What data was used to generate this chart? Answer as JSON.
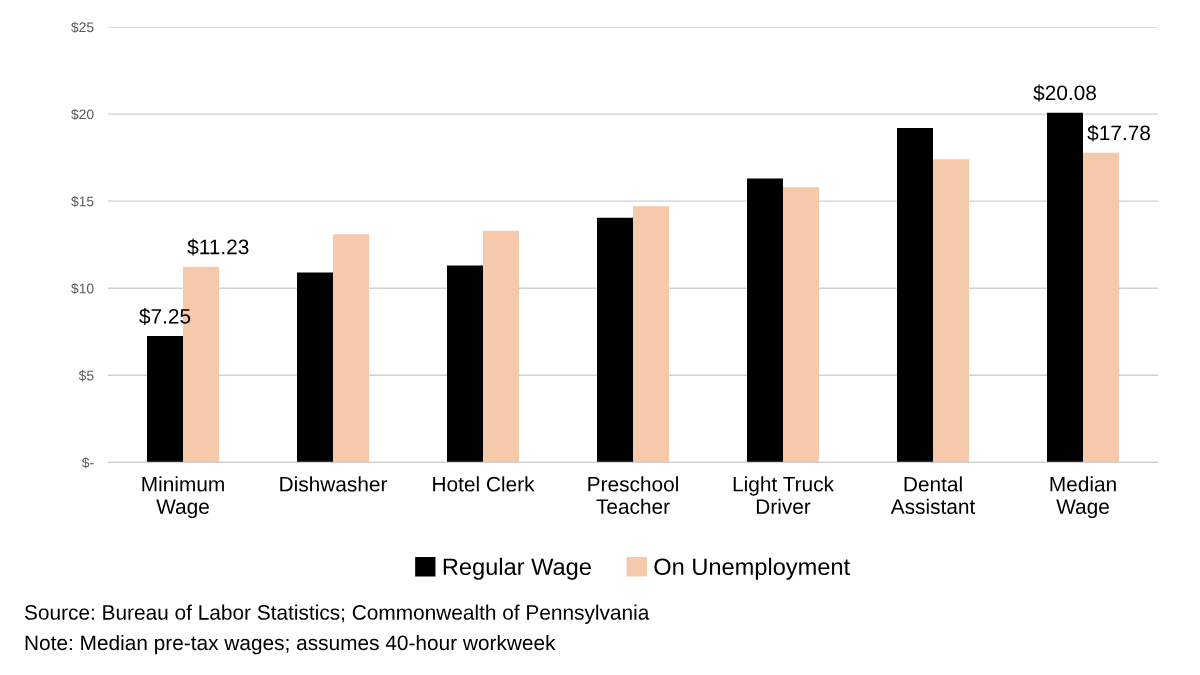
{
  "chart_data": {
    "type": "bar",
    "categories": [
      "Minimum\nWage",
      "Dishwasher",
      "Hotel Clerk",
      "Preschool\nTeacher",
      "Light Truck\nDriver",
      "Dental\nAssistant",
      "Median\nWage"
    ],
    "series": [
      {
        "name": "Regular Wage",
        "color": "#000000",
        "values": [
          7.25,
          10.9,
          11.3,
          14.05,
          16.3,
          19.2,
          20.08
        ],
        "value_labels": [
          "$7.25",
          null,
          null,
          null,
          null,
          null,
          "$20.08"
        ]
      },
      {
        "name": "On Unemployment",
        "color": "#f5c9a9",
        "values": [
          11.23,
          13.1,
          13.3,
          14.7,
          15.8,
          17.4,
          17.78
        ],
        "value_labels": [
          "$11.23",
          null,
          null,
          null,
          null,
          null,
          "$17.78"
        ]
      }
    ],
    "ylim": [
      0,
      25
    ],
    "yticks": [
      {
        "value": 0,
        "label": "$-"
      },
      {
        "value": 5,
        "label": "$5"
      },
      {
        "value": 10,
        "label": "$10"
      },
      {
        "value": 15,
        "label": "$15"
      },
      {
        "value": 20,
        "label": "$20"
      },
      {
        "value": 25,
        "label": "$25"
      }
    ],
    "grid": "y",
    "legend": "bottom",
    "annotations": [
      "Source: Bureau of Labor Statistics; Commonwealth of Pennsylvania",
      "Note: Median pre-tax wages; assumes 40-hour workweek"
    ]
  }
}
